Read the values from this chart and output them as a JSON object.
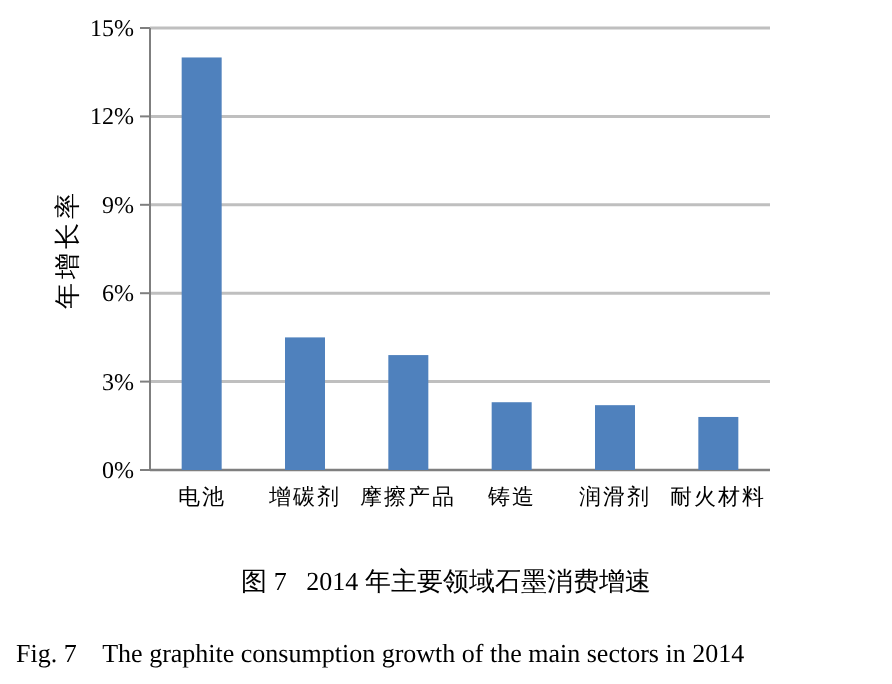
{
  "chart_data": {
    "type": "bar",
    "title": "图 7   2014 年主要领域石墨消费增速",
    "subtitle": "Fig. 7    The graphite consumption growth of the main sectors in 2014",
    "ylabel": "年增长率",
    "categories": [
      "电池",
      "增碳剂",
      "摩擦产品",
      "铸造",
      "润滑剂",
      "耐火材料"
    ],
    "values": [
      14,
      4.5,
      3.9,
      2.3,
      2.2,
      1.8
    ],
    "color": "#4f81bd",
    "ylim": [
      0,
      15
    ],
    "yticks": [
      {
        "value": 0,
        "label": "0%"
      },
      {
        "value": 3,
        "label": "3%"
      },
      {
        "value": 6,
        "label": "6%"
      },
      {
        "value": 9,
        "label": "9%"
      },
      {
        "value": 12,
        "label": "12%"
      },
      {
        "value": 15,
        "label": "15%"
      }
    ],
    "grid": "y"
  }
}
